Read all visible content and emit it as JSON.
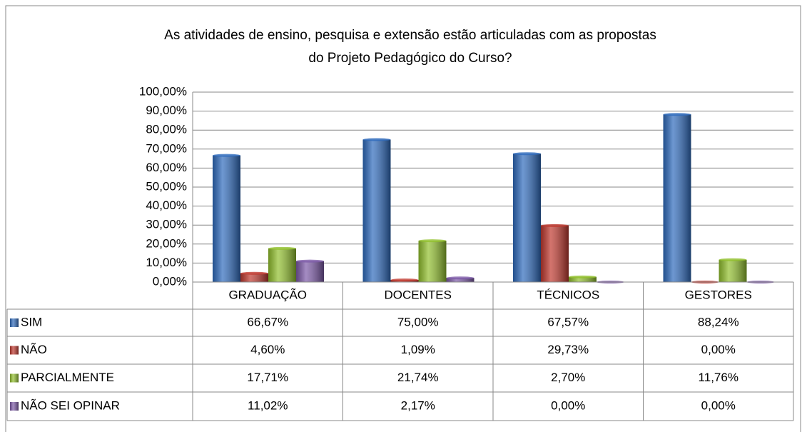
{
  "chart_data": {
    "type": "bar",
    "title": [
      "As atividades de ensino, pesquisa e extensão estão articuladas com as propostas",
      "do Projeto Pedagógico do Curso?"
    ],
    "categories": [
      "GRADUAÇÃO",
      "DOCENTES",
      "TÉCNICOS",
      "GESTORES"
    ],
    "series": [
      {
        "name": "SIM",
        "color": "#2f6bbd",
        "values": [
          66.67,
          75.0,
          67.57,
          88.24
        ],
        "value_labels": [
          "66,67%",
          "75,00%",
          "67,57%",
          "88,24%"
        ]
      },
      {
        "name": "NÃO",
        "color": "#c0392f",
        "values": [
          4.6,
          1.09,
          29.73,
          0.0
        ],
        "value_labels": [
          "4,60%",
          "1,09%",
          "29,73%",
          "0,00%"
        ]
      },
      {
        "name": "PARCIALMENTE",
        "color": "#92c02e",
        "values": [
          17.71,
          21.74,
          2.7,
          11.76
        ],
        "value_labels": [
          "17,71%",
          "21,74%",
          "2,70%",
          "11,76%"
        ]
      },
      {
        "name": "NÃO SEI OPINAR",
        "color": "#7d5aa8",
        "values": [
          11.02,
          2.17,
          0.0,
          0.0
        ],
        "value_labels": [
          "11,02%",
          "2,17%",
          "0,00%",
          "0,00%"
        ]
      }
    ],
    "ylim": [
      0,
      100
    ],
    "yticks": [
      {
        "value": 0,
        "label": "0,00%"
      },
      {
        "value": 10,
        "label": "10,00%"
      },
      {
        "value": 20,
        "label": "20,00%"
      },
      {
        "value": 30,
        "label": "30,00%"
      },
      {
        "value": 40,
        "label": "40,00%"
      },
      {
        "value": 50,
        "label": "50,00%"
      },
      {
        "value": 60,
        "label": "60,00%"
      },
      {
        "value": 70,
        "label": "70,00%"
      },
      {
        "value": 80,
        "label": "80,00%"
      },
      {
        "value": 90,
        "label": "90,00%"
      },
      {
        "value": 100,
        "label": "100,00%"
      }
    ],
    "grid": true
  }
}
